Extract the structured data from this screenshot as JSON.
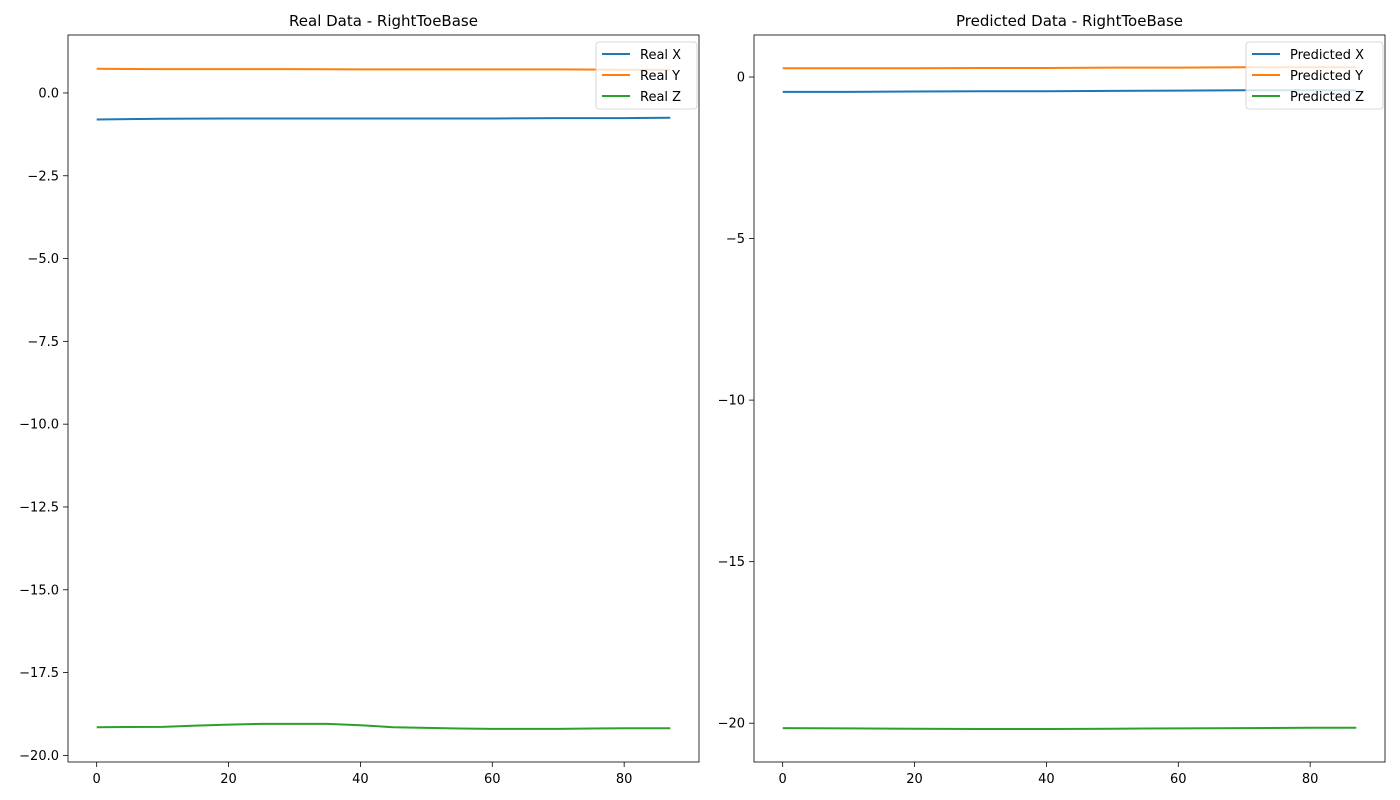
{
  "chart_data": [
    {
      "type": "line",
      "title": "Real Data - RightToeBase",
      "xlabel": "",
      "ylabel": "",
      "xlim": [
        -4.35,
        91.35
      ],
      "ylim": [
        -20.2,
        1.75
      ],
      "xticks": [
        0,
        20,
        40,
        60,
        80
      ],
      "xtick_labels": [
        "0",
        "20",
        "40",
        "60",
        "80"
      ],
      "yticks": [
        0.0,
        -2.5,
        -5.0,
        -7.5,
        -10.0,
        -12.5,
        -15.0,
        -17.5,
        -20.0
      ],
      "ytick_labels": [
        "0.0",
        "−2.5",
        "−5.0",
        "−7.5",
        "−10.0",
        "−12.5",
        "−15.0",
        "−17.5",
        "−20.0"
      ],
      "grid": false,
      "legend_position": "top-right",
      "series": [
        {
          "name": "Real X",
          "color": "#1f77b4",
          "x": [
            0,
            10,
            20,
            30,
            40,
            50,
            60,
            70,
            80,
            87
          ],
          "y": [
            -0.8,
            -0.78,
            -0.77,
            -0.77,
            -0.77,
            -0.77,
            -0.77,
            -0.76,
            -0.76,
            -0.75
          ]
        },
        {
          "name": "Real Y",
          "color": "#ff7f0e",
          "x": [
            0,
            10,
            20,
            30,
            40,
            50,
            60,
            70,
            80,
            87
          ],
          "y": [
            0.73,
            0.72,
            0.72,
            0.72,
            0.71,
            0.71,
            0.71,
            0.71,
            0.7,
            0.7
          ]
        },
        {
          "name": "Real Z",
          "color": "#2ca02c",
          "x": [
            0,
            10,
            15,
            20,
            25,
            30,
            35,
            40,
            45,
            50,
            55,
            60,
            65,
            70,
            75,
            80,
            87
          ],
          "y": [
            -19.15,
            -19.14,
            -19.1,
            -19.07,
            -19.05,
            -19.05,
            -19.05,
            -19.09,
            -19.15,
            -19.17,
            -19.19,
            -19.2,
            -19.2,
            -19.2,
            -19.19,
            -19.18,
            -19.18
          ]
        }
      ]
    },
    {
      "type": "line",
      "title": "Predicted Data - RightToeBase",
      "xlabel": "",
      "ylabel": "",
      "xlim": [
        -4.35,
        91.35
      ],
      "ylim": [
        -21.2,
        1.3
      ],
      "xticks": [
        0,
        20,
        40,
        60,
        80
      ],
      "xtick_labels": [
        "0",
        "20",
        "40",
        "60",
        "80"
      ],
      "yticks": [
        0,
        -5,
        -10,
        -15,
        -20
      ],
      "ytick_labels": [
        "0",
        "−5",
        "−10",
        "−15",
        "−20"
      ],
      "grid": false,
      "legend_position": "top-right",
      "series": [
        {
          "name": "Predicted X",
          "color": "#1f77b4",
          "x": [
            0,
            10,
            20,
            30,
            40,
            50,
            60,
            70,
            80,
            87
          ],
          "y": [
            -0.46,
            -0.46,
            -0.45,
            -0.44,
            -0.44,
            -0.43,
            -0.42,
            -0.41,
            -0.41,
            -0.41
          ]
        },
        {
          "name": "Predicted Y",
          "color": "#ff7f0e",
          "x": [
            0,
            10,
            20,
            30,
            40,
            50,
            60,
            70,
            80,
            87
          ],
          "y": [
            0.27,
            0.27,
            0.27,
            0.28,
            0.28,
            0.29,
            0.29,
            0.3,
            0.3,
            0.3
          ]
        },
        {
          "name": "Predicted Z",
          "color": "#2ca02c",
          "x": [
            0,
            10,
            20,
            30,
            40,
            50,
            60,
            70,
            80,
            87
          ],
          "y": [
            -20.15,
            -20.16,
            -20.17,
            -20.18,
            -20.18,
            -20.17,
            -20.16,
            -20.15,
            -20.14,
            -20.14
          ]
        }
      ]
    }
  ]
}
